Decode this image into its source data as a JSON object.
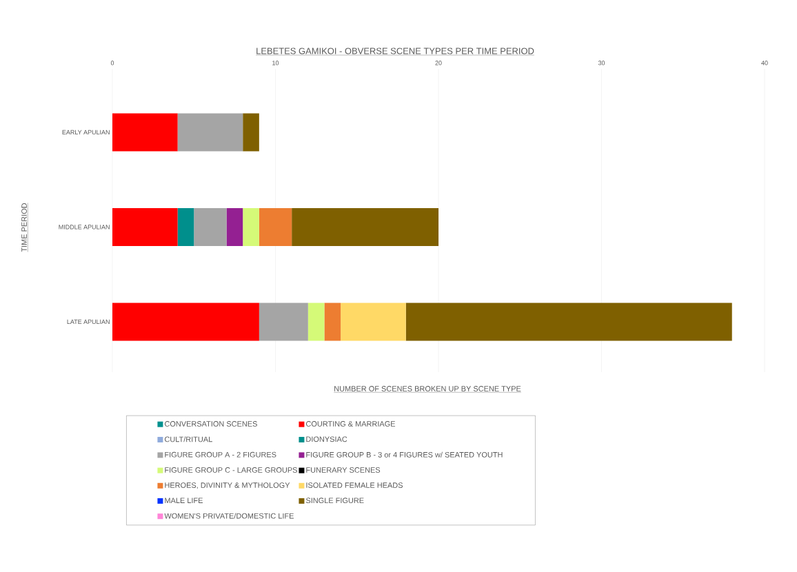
{
  "chart_data": {
    "type": "bar",
    "orientation": "horizontal",
    "stacked": true,
    "title": "LEBETES GAMIKOI - OBVERSE SCENE TYPES PER TIME PERIOD",
    "xlabel": "NUMBER OF SCENES BROKEN UP BY SCENE TYPE",
    "ylabel": "TIME PERIOD",
    "categories": [
      "EARLY APULIAN",
      "MIDDLE APULIAN",
      "LATE APULIAN"
    ],
    "xlim": [
      0,
      40
    ],
    "xticks": [
      0,
      10,
      20,
      30,
      40
    ],
    "grid": "x",
    "legend": "bottom",
    "series": [
      {
        "name": "CONVERSATION SCENES",
        "color": "#00918f",
        "values": [
          0,
          0,
          0
        ]
      },
      {
        "name": "COURTING & MARRIAGE",
        "color": "#ff0000",
        "values": [
          4,
          4,
          9
        ]
      },
      {
        "name": "CULT/RITUAL",
        "color": "#8faadc",
        "values": [
          0,
          0,
          0
        ]
      },
      {
        "name": "DIONYSIAC",
        "color": "#008f8c",
        "values": [
          0,
          1,
          0
        ]
      },
      {
        "name": "FIGURE GROUP A  - 2 FIGURES",
        "color": "#a5a5a5",
        "values": [
          4,
          2,
          3
        ]
      },
      {
        "name": "FIGURE GROUP B - 3 or 4 FIGURES w/ SEATED YOUTH",
        "color": "#942092",
        "values": [
          0,
          1,
          0
        ]
      },
      {
        "name": "FIGURE GROUP C  - LARGE GROUPS",
        "color": "#d5fa78",
        "values": [
          0,
          1,
          1
        ]
      },
      {
        "name": "FUNERARY SCENES",
        "color": "#000000",
        "values": [
          0,
          0,
          0
        ]
      },
      {
        "name": "HEROES, DIVINITY & MYTHOLOGY",
        "color": "#ed7d31",
        "values": [
          0,
          2,
          1
        ]
      },
      {
        "name": "ISOLATED FEMALE HEADS",
        "color": "#ffd966",
        "values": [
          0,
          0,
          4
        ]
      },
      {
        "name": "MALE LIFE",
        "color": "#0433ff",
        "values": [
          0,
          0,
          0
        ]
      },
      {
        "name": "SINGLE FIGURE",
        "color": "#7f6000",
        "values": [
          1,
          9,
          20
        ]
      },
      {
        "name": "WOMEN'S PRIVATE/DOMESTIC LIFE",
        "color": "#ff85d8",
        "values": [
          0,
          0,
          0
        ]
      }
    ]
  }
}
